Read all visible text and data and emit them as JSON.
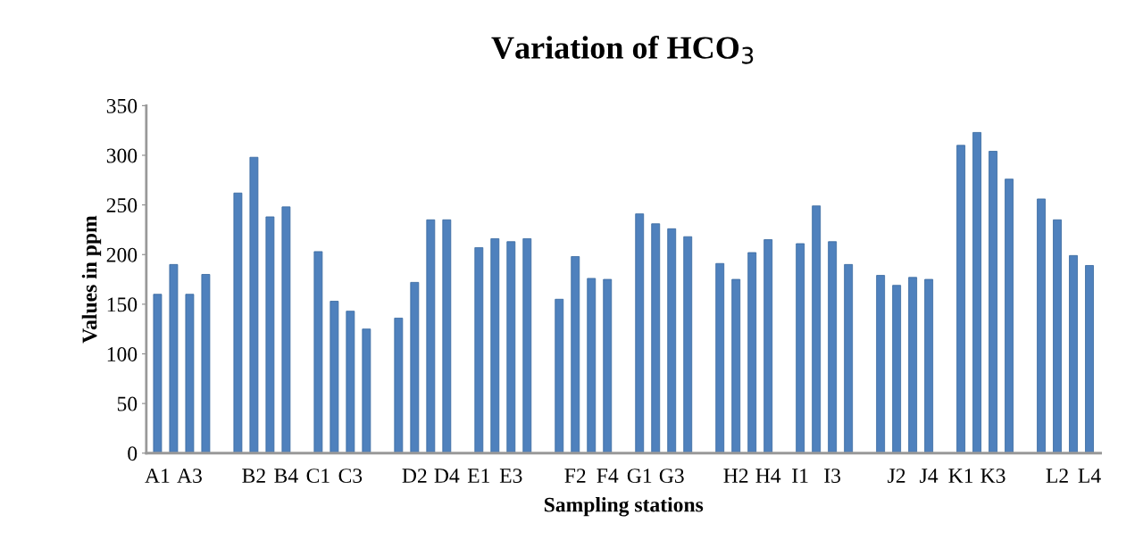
{
  "chart_data": {
    "type": "bar",
    "title": "Variation of HCO$_{3}$",
    "xlabel": "Sampling stations",
    "ylabel": "Values in ppm",
    "categories": [
      "A1",
      null,
      "A3",
      null,
      null,
      null,
      "B2",
      null,
      "B4",
      null,
      "C1",
      null,
      "C3",
      null,
      null,
      null,
      "D2",
      null,
      "D4",
      null,
      "E1",
      null,
      "E3",
      null,
      null,
      null,
      "F2",
      null,
      "F4",
      null,
      "G1",
      null,
      "G3",
      null,
      null,
      null,
      "H2",
      null,
      "H4",
      null,
      "I1",
      null,
      "I3",
      null,
      null,
      null,
      "J2",
      null,
      "J4",
      null,
      "K1",
      null,
      "K3",
      null,
      null,
      null,
      "L2",
      null,
      "L4"
    ],
    "values": [
      160,
      190,
      160,
      180,
      null,
      262,
      298,
      238,
      248,
      null,
      203,
      153,
      143,
      125,
      null,
      136,
      172,
      235,
      235,
      null,
      207,
      216,
      213,
      216,
      null,
      155,
      198,
      176,
      175,
      null,
      241,
      231,
      226,
      218,
      null,
      191,
      175,
      202,
      215,
      null,
      211,
      249,
      213,
      190,
      null,
      179,
      169,
      177,
      175,
      null,
      310,
      323,
      304,
      276,
      null,
      256,
      235,
      199,
      189
    ],
    "color": "#4f81bd",
    "ylim": [
      0,
      350
    ],
    "yticks": [
      0,
      50,
      100,
      150,
      200,
      250,
      300,
      350
    ],
    "grid": false,
    "legend": false
  }
}
